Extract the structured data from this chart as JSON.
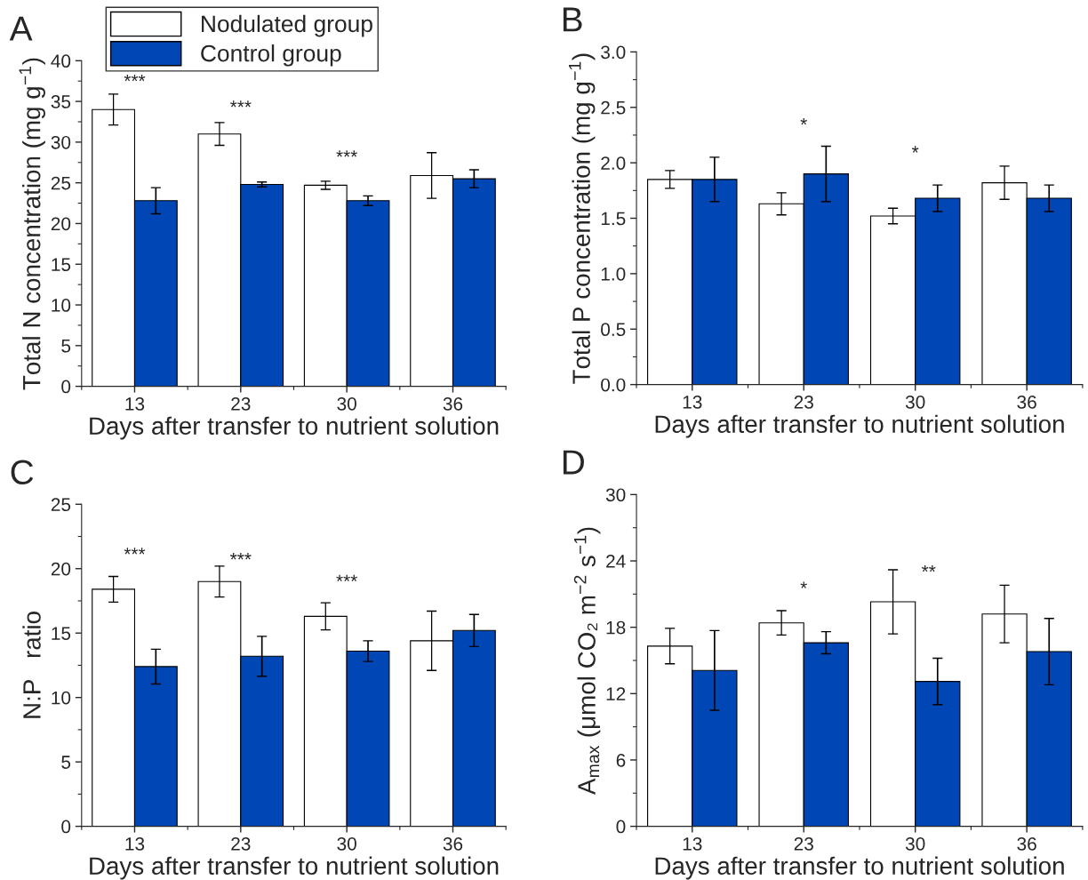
{
  "chart_data": [
    {
      "type": "bar",
      "title": "A",
      "xlabel": "Days after transfer to nutrient solution",
      "ylabel": "Total N concentration (mg g$^{−1}$)",
      "categories": [
        "13",
        "23",
        "30",
        "36"
      ],
      "legend": "top left",
      "series": [
        {
          "name": "Nodulated group",
          "color": "#ffffff",
          "values": [
            34.0,
            31.0,
            24.7,
            25.9
          ],
          "errors": [
            1.9,
            1.4,
            0.5,
            2.8
          ]
        },
        {
          "name": "Control group",
          "color": "#0047b5",
          "values": [
            22.8,
            24.8,
            22.8,
            25.5
          ],
          "errors": [
            1.6,
            0.3,
            0.6,
            1.1
          ]
        }
      ],
      "ylim": [
        0,
        40
      ],
      "yticks": [
        0,
        5,
        10,
        15,
        20,
        25,
        30,
        35,
        40
      ],
      "annotations": [
        "***",
        "***",
        "***"
      ]
    },
    {
      "type": "bar",
      "title": "B",
      "xlabel": "Days after transfer to nutrient solution",
      "ylabel": "Total P concentration (mg g$^{−1}$)",
      "categories": [
        "13",
        "23",
        "30",
        "36"
      ],
      "series": [
        {
          "color": "#ffffff",
          "values": [
            1.85,
            1.63,
            1.52,
            1.82
          ],
          "errors": [
            0.08,
            0.1,
            0.07,
            0.15
          ]
        },
        {
          "color": "#0047b5",
          "values": [
            1.85,
            1.9,
            1.68,
            1.68
          ],
          "errors": [
            0.2,
            0.25,
            0.12,
            0.12
          ]
        }
      ],
      "ylim": [
        0,
        3
      ],
      "yticks": [
        {
          "value": 0,
          "label": "0.0"
        },
        {
          "value": 0.5,
          "label": "0.5"
        },
        {
          "value": 1,
          "label": "1.0"
        },
        {
          "value": 1.5,
          "label": "1.5"
        },
        {
          "value": 2,
          "label": "2.0"
        },
        {
          "value": 2.5,
          "label": "2.5"
        },
        {
          "value": 3,
          "label": "3.0"
        }
      ],
      "annotations": [
        "*",
        "*"
      ]
    },
    {
      "type": "bar",
      "title": "C",
      "xlabel": "Days after transfer to nutrient solution",
      "ylabel": "N:P   ratio",
      "categories": [
        "13",
        "23",
        "30",
        "36"
      ],
      "series": [
        {
          "color": "#ffffff",
          "values": [
            18.4,
            19.0,
            16.3,
            14.4
          ],
          "errors": [
            1.0,
            1.2,
            1.05,
            2.3
          ]
        },
        {
          "color": "#0047b5",
          "values": [
            12.4,
            13.2,
            13.6,
            15.2
          ],
          "errors": [
            1.35,
            1.55,
            0.8,
            1.25
          ]
        }
      ],
      "ylim": [
        0,
        25
      ],
      "yticks": [
        0,
        5,
        10,
        15,
        20,
        25
      ],
      "annotations": [
        "***",
        "***",
        "***"
      ]
    },
    {
      "type": "bar",
      "title": "D",
      "xlabel": "Days after transfer to nutrient solution",
      "ylabel": "A$_{max}$ (μmol CO₂ m$^{−2}$ s$^{−1}$)",
      "categories": [
        "13",
        "23",
        "30",
        "36"
      ],
      "series": [
        {
          "color": "#ffffff",
          "values": [
            16.3,
            18.4,
            20.3,
            19.2
          ],
          "errors": [
            1.6,
            1.1,
            2.9,
            2.6
          ]
        },
        {
          "color": "#0047b5",
          "values": [
            14.1,
            16.6,
            13.1,
            15.8
          ],
          "errors": [
            3.6,
            1.0,
            2.1,
            3.0
          ]
        }
      ],
      "ylim": [
        0,
        30
      ],
      "yticks": [
        0,
        6,
        12,
        18,
        24,
        30
      ],
      "annotations": [
        "*",
        "**"
      ]
    }
  ]
}
